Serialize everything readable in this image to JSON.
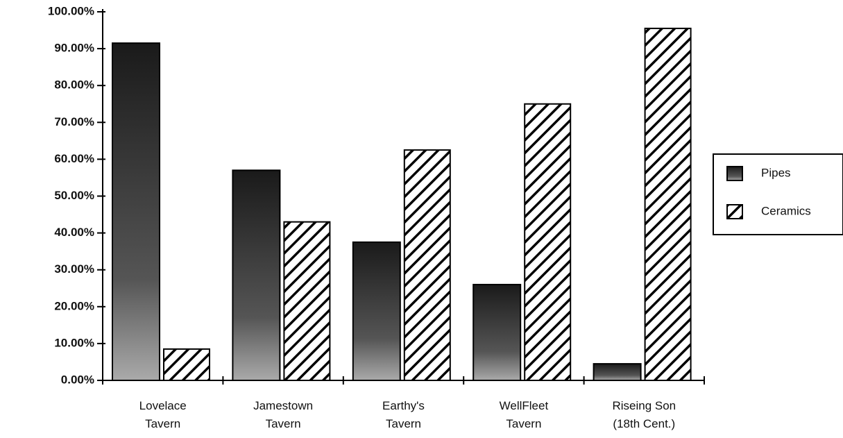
{
  "chart_data": {
    "type": "bar",
    "categories": [
      "Lovelace Tavern",
      "Jamestown Tavern",
      "Earthy's Tavern",
      "WellFleet Tavern",
      "Riseing Son (18th Cent.)"
    ],
    "series": [
      {
        "name": "Pipes",
        "color": "#2b2b2b",
        "values": [
          91.5,
          57,
          37.5,
          26,
          4.5
        ]
      },
      {
        "name": "Ceramics",
        "color": "#ffffff",
        "values": [
          8.5,
          43,
          62.5,
          75,
          95.5
        ]
      }
    ],
    "ylim": [
      0,
      100
    ],
    "yticks": [
      {
        "value": 0,
        "label": "0.00%"
      },
      {
        "value": 10,
        "label": "10.00%"
      },
      {
        "value": 20,
        "label": "20.00%"
      },
      {
        "value": 30,
        "label": "30.00%"
      },
      {
        "value": 40,
        "label": "40.00%"
      },
      {
        "value": 50,
        "label": "50.00%"
      },
      {
        "value": 60,
        "label": "60.00%"
      },
      {
        "value": 70,
        "label": "70.00%"
      },
      {
        "value": 80,
        "label": "80.00%"
      },
      {
        "value": 90,
        "label": "90.00%"
      },
      {
        "value": 100,
        "label": "100.00%"
      }
    ],
    "grid": false,
    "legend": "right"
  }
}
